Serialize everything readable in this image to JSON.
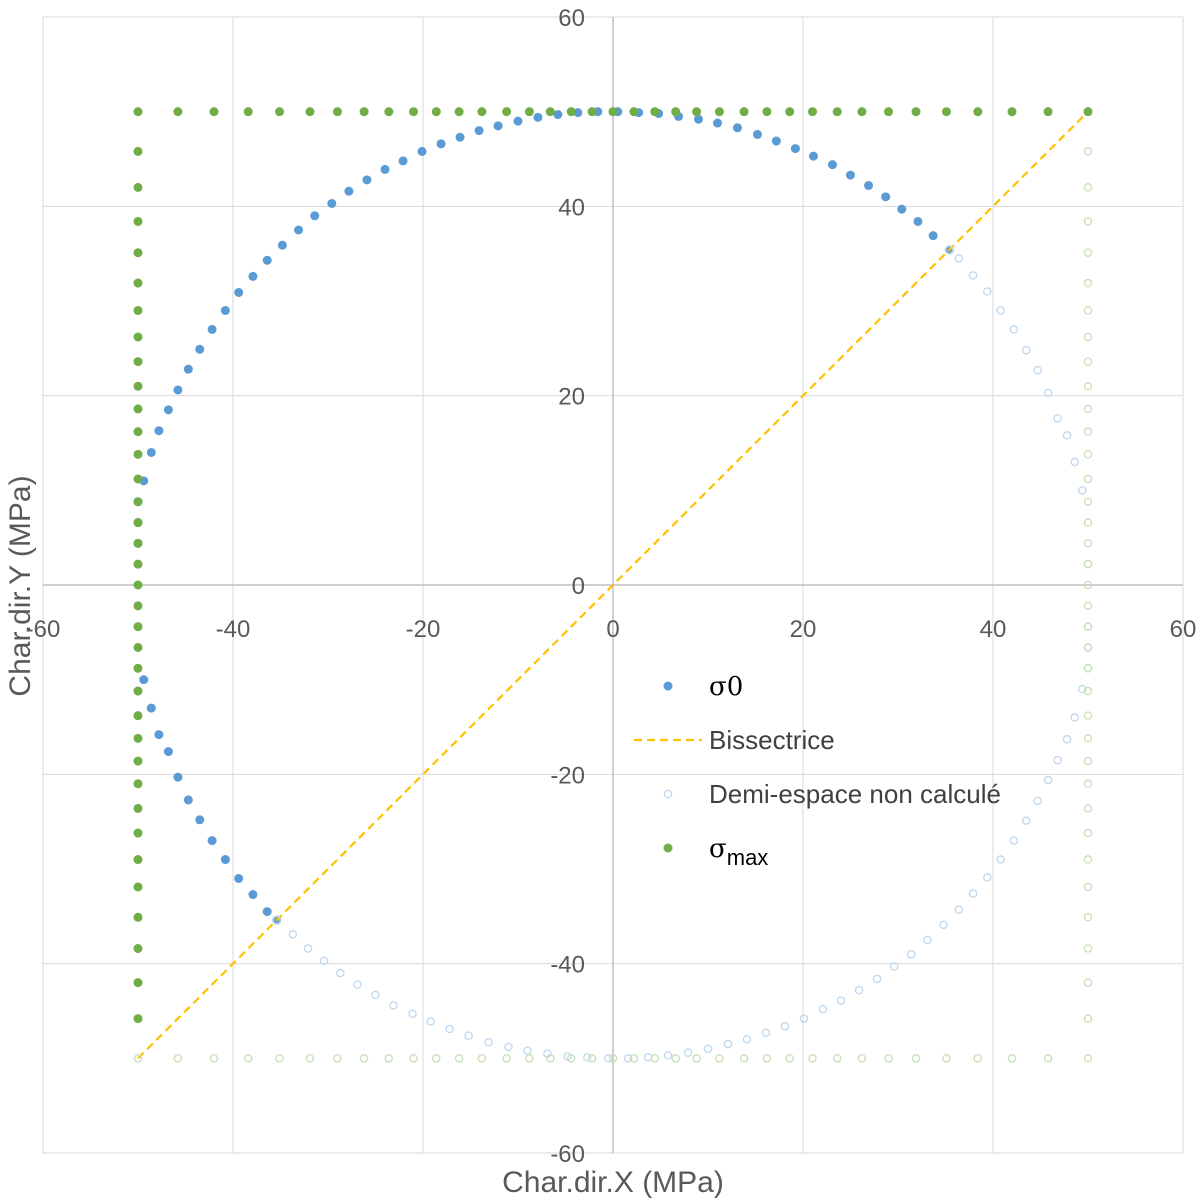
{
  "chart_data": {
    "type": "scatter",
    "xlabel": "Char.dir.X (MPa)",
    "ylabel": "Char.dir.Y (MPa)",
    "xlim": [
      -60,
      60
    ],
    "ylim": [
      -60,
      60
    ],
    "xticks": [
      -60,
      -40,
      -20,
      0,
      20,
      40,
      60
    ],
    "yticks": [
      -60,
      -40,
      -20,
      0,
      20,
      40,
      60
    ],
    "grid": true,
    "legend_position": "center-right",
    "series": [
      {
        "name": "σ0",
        "symbol": "σ",
        "suffix": "0",
        "style": "filled-dot",
        "color": "#5B9BD5",
        "shape": "circle arc, radius 50 MPa, from 45° to 225°",
        "x": [
          35.4,
          33.7,
          32.1,
          30.4,
          28.7,
          26.9,
          25.0,
          23.1,
          21.1,
          19.2,
          17.2,
          15.2,
          13.1,
          11.0,
          9.0,
          6.9,
          4.8,
          2.7,
          0.5,
          -1.6,
          -3.7,
          -5.8,
          -7.9,
          -10.0,
          -12.1,
          -14.1,
          -16.1,
          -18.1,
          -20.1,
          -22.1,
          -24.0,
          -25.9,
          -27.8,
          -29.6,
          -31.4,
          -33.1,
          -34.8,
          -36.4,
          -37.9,
          -39.4,
          -40.8,
          -42.2,
          -43.5,
          -44.7,
          -45.8,
          -46.8,
          -47.8,
          -48.6,
          -49.4,
          -50.0,
          -50.0,
          -50.0,
          -49.4,
          -48.6,
          -47.8,
          -46.8,
          -45.8,
          -44.7,
          -43.5,
          -42.2,
          -40.8,
          -39.4,
          -37.9,
          -36.4,
          -35.4
        ],
        "y": [
          35.4,
          36.9,
          38.4,
          39.7,
          41.0,
          42.2,
          43.3,
          44.4,
          45.3,
          46.1,
          46.9,
          47.6,
          48.3,
          48.8,
          49.2,
          49.5,
          49.8,
          49.9,
          50.0,
          50.0,
          49.9,
          49.7,
          49.4,
          49.0,
          48.5,
          48.0,
          47.3,
          46.6,
          45.8,
          44.8,
          43.9,
          42.8,
          41.6,
          40.3,
          39.0,
          37.5,
          35.9,
          34.3,
          32.6,
          30.9,
          29.0,
          27.0,
          24.9,
          22.8,
          20.6,
          18.5,
          16.3,
          14.0,
          11.0,
          8.8,
          6.6,
          4.4,
          -10.0,
          -13.0,
          -15.8,
          -17.6,
          -20.3,
          -22.7,
          -24.8,
          -27.0,
          -29.0,
          -31.0,
          -32.7,
          -34.5,
          -35.4
        ]
      },
      {
        "name": "Bissectrice",
        "style": "dashed-line",
        "color": "#FFC000",
        "x": [
          -50,
          50
        ],
        "y": [
          -50,
          50
        ]
      },
      {
        "name": "Demi-espace non calculé",
        "style": "hollow-dot",
        "color": "#BDD7EE",
        "shape": "circle arc, radius 50 MPa, from 225° to 405°",
        "x": [
          -35.4,
          -33.7,
          -32.1,
          -30.4,
          -28.7,
          -26.9,
          -25.0,
          -23.1,
          -21.1,
          -19.2,
          -17.2,
          -15.2,
          -13.1,
          -11.0,
          -9.0,
          -6.9,
          -4.8,
          -2.7,
          -0.5,
          1.6,
          3.7,
          5.8,
          7.9,
          10.0,
          12.1,
          14.1,
          16.1,
          18.1,
          20.1,
          22.1,
          24.0,
          25.9,
          27.8,
          29.6,
          31.4,
          33.1,
          34.8,
          36.4,
          37.9,
          39.4,
          40.8,
          42.2,
          43.5,
          44.7,
          45.8,
          46.8,
          47.8,
          48.6,
          49.4,
          50.0,
          50.0,
          50.0,
          49.4,
          48.6,
          47.8,
          46.8,
          45.8,
          44.7,
          43.5,
          42.2,
          40.8,
          39.4,
          37.9,
          36.4,
          35.4
        ],
        "y": [
          -35.4,
          -36.9,
          -38.4,
          -39.7,
          -41.0,
          -42.2,
          -43.3,
          -44.4,
          -45.3,
          -46.1,
          -46.9,
          -47.6,
          -48.3,
          -48.8,
          -49.2,
          -49.5,
          -49.8,
          -49.9,
          -50.0,
          -50.0,
          -49.9,
          -49.7,
          -49.4,
          -49.0,
          -48.5,
          -48.0,
          -47.3,
          -46.6,
          -45.8,
          -44.8,
          -43.9,
          -42.8,
          -41.6,
          -40.3,
          -39.0,
          -37.5,
          -35.9,
          -34.3,
          -32.6,
          -30.9,
          -29.0,
          -27.0,
          -24.9,
          -22.8,
          -20.6,
          -18.5,
          -16.3,
          -14.0,
          -11.0,
          -8.8,
          -6.6,
          -4.4,
          10.0,
          13.0,
          15.8,
          17.6,
          20.3,
          22.7,
          24.8,
          27.0,
          29.0,
          31.0,
          32.7,
          34.5,
          35.4
        ]
      },
      {
        "name": "σmax",
        "symbol": "σ",
        "suffix": "max",
        "style": "filled-dot",
        "color": "#70AD47",
        "shape": "square edges x=-50 and y=50",
        "x": [
          -50,
          -50,
          -50,
          -50,
          -50,
          -50,
          -50,
          -50,
          -50,
          -50,
          -50,
          -50,
          -50,
          -50,
          -50,
          -50,
          -50,
          -50,
          -50,
          -50,
          -50,
          -50,
          -50,
          -50,
          -50,
          -50,
          -50,
          -50,
          -50,
          -50,
          -50,
          -50,
          -50,
          -50,
          -50,
          -50,
          -45.8,
          -42.0,
          -38.4,
          -35.1,
          -31.9,
          -29.0,
          -26.2,
          -23.6,
          -21.0,
          -18.6,
          -16.2,
          -13.8,
          -11.2,
          -8.8,
          -6.6,
          -4.4,
          -2.2,
          0,
          2.2,
          4.4,
          6.6,
          8.8,
          11.2,
          13.8,
          16.2,
          18.6,
          21.0,
          23.6,
          26.2,
          29.0,
          31.9,
          35.1,
          38.4,
          42.0,
          45.8,
          50
        ],
        "y": [
          -45.8,
          -42.0,
          -38.4,
          -35.1,
          -31.9,
          -29.0,
          -26.2,
          -23.6,
          -21.0,
          -18.6,
          -16.2,
          -13.8,
          -11.2,
          -8.8,
          -6.6,
          -4.4,
          -2.2,
          0,
          2.2,
          4.4,
          6.6,
          8.8,
          11.2,
          13.8,
          16.2,
          18.6,
          21.0,
          23.6,
          26.2,
          29.0,
          31.9,
          35.1,
          38.4,
          42.0,
          45.8,
          50,
          50,
          50,
          50,
          50,
          50,
          50,
          50,
          50,
          50,
          50,
          50,
          50,
          50,
          50,
          50,
          50,
          50,
          50,
          50,
          50,
          50,
          50,
          50,
          50,
          50,
          50,
          50,
          50,
          50,
          50,
          50,
          50,
          50,
          50,
          50,
          50
        ]
      },
      {
        "name": "",
        "style": "hollow-dot",
        "color": "#C5E0B4",
        "shape": "square edges x=50 and y=-50",
        "x": [
          50,
          50,
          50,
          50,
          50,
          50,
          50,
          50,
          50,
          50,
          50,
          50,
          50,
          50,
          50,
          50,
          50,
          50,
          50,
          50,
          50,
          50,
          50,
          50,
          50,
          50,
          50,
          50,
          50,
          50,
          50,
          50,
          50,
          50,
          50,
          50,
          45.8,
          42.0,
          38.4,
          35.1,
          31.9,
          29.0,
          26.2,
          23.6,
          21.0,
          18.6,
          16.2,
          13.8,
          11.2,
          8.8,
          6.6,
          4.4,
          2.2,
          0,
          -2.2,
          -4.4,
          -6.6,
          -8.8,
          -11.2,
          -13.8,
          -16.2,
          -18.6,
          -21.0,
          -23.6,
          -26.2,
          -29.0,
          -31.9,
          -35.1,
          -38.4,
          -42.0,
          -45.8,
          -50
        ],
        "y": [
          45.8,
          42.0,
          38.4,
          35.1,
          31.9,
          29.0,
          26.2,
          23.6,
          21.0,
          18.6,
          16.2,
          13.8,
          11.2,
          8.8,
          6.6,
          4.4,
          2.2,
          0,
          -2.2,
          -4.4,
          -6.6,
          -8.8,
          -11.2,
          -13.8,
          -16.2,
          -18.6,
          -21.0,
          -23.6,
          -26.2,
          -29.0,
          -31.9,
          -35.1,
          -38.4,
          -42.0,
          -45.8,
          -50,
          -50,
          -50,
          -50,
          -50,
          -50,
          -50,
          -50,
          -50,
          -50,
          -50,
          -50,
          -50,
          -50,
          -50,
          -50,
          -50,
          -50,
          -50,
          -50,
          -50,
          -50,
          -50,
          -50,
          -50,
          -50,
          -50,
          -50,
          -50,
          -50,
          -50,
          -50,
          -50,
          -50,
          -50,
          -50,
          -50
        ]
      }
    ],
    "legend": [
      {
        "symbol": "σ",
        "suffix": "0",
        "style": "filled-dot",
        "color": "#5B9BD5"
      },
      {
        "label": "Bissectrice",
        "style": "dashed-line",
        "color": "#FFC000"
      },
      {
        "label": "Demi-espace non calculé",
        "style": "hollow-dot",
        "color": "#BDD7EE"
      },
      {
        "symbol": "σ",
        "suffix": "max",
        "style": "filled-dot",
        "color": "#70AD47"
      }
    ]
  }
}
